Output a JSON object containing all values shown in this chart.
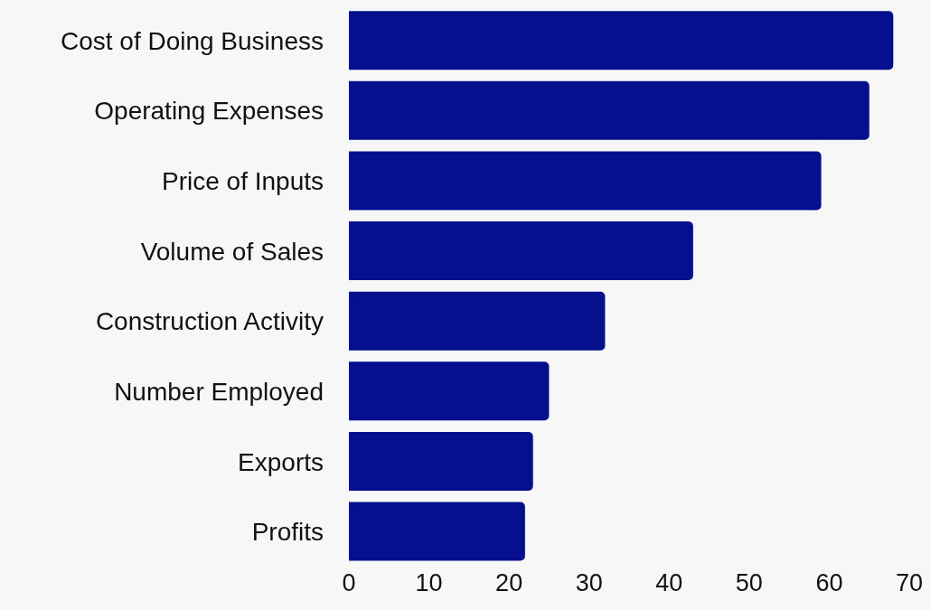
{
  "chart_data": {
    "type": "bar",
    "orientation": "horizontal",
    "categories": [
      "Cost of Doing Business",
      "Operating Expenses",
      "Price of Inputs",
      "Volume of Sales",
      "Construction Activity",
      "Number Employed",
      "Exports",
      "Profits"
    ],
    "values": [
      68,
      65,
      59,
      43,
      32,
      25,
      23,
      22
    ],
    "color": "#06108e",
    "xlim": [
      0,
      70
    ],
    "xticks": [
      0,
      10,
      20,
      30,
      40,
      50,
      60,
      70
    ],
    "grid": false,
    "legend": false
  }
}
